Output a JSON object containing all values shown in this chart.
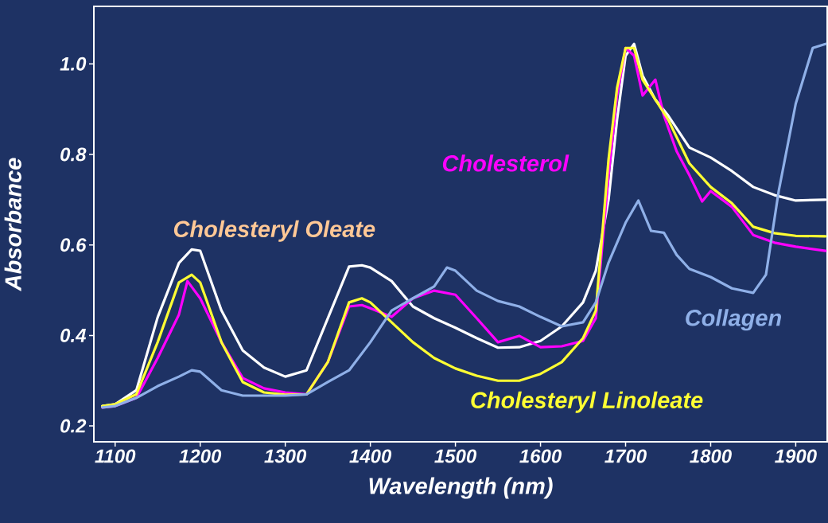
{
  "chart_data": {
    "type": "line",
    "xlabel": "Wavelength (nm)",
    "ylabel": "Absorbance",
    "xlim": [
      1075,
      1937
    ],
    "ylim": [
      0.165,
      1.127
    ],
    "xticks": [
      1100,
      1200,
      1300,
      1400,
      1500,
      1600,
      1700,
      1800,
      1900
    ],
    "yticks": [
      0.2,
      0.4,
      0.6,
      0.8,
      {
        "value": 1.0,
        "label": "1.0"
      }
    ],
    "tick_labels": "xy",
    "grid": false,
    "legend": false,
    "marker": "none",
    "line_style": "solid",
    "series": [
      {
        "name": "Cholesteryl   Oleate",
        "color": "#ffffff",
        "x": [
          1085,
          1100,
          1125,
          1150,
          1175,
          1190,
          1200,
          1225,
          1250,
          1275,
          1300,
          1325,
          1350,
          1375,
          1390,
          1400,
          1425,
          1450,
          1475,
          1500,
          1525,
          1550,
          1575,
          1600,
          1625,
          1650,
          1665,
          1680,
          1690,
          1700,
          1710,
          1720,
          1735,
          1750,
          1775,
          1800,
          1825,
          1850,
          1875,
          1900,
          1935
        ],
        "values": [
          0.244,
          0.248,
          0.279,
          0.44,
          0.56,
          0.59,
          0.587,
          0.455,
          0.367,
          0.329,
          0.309,
          0.323,
          0.438,
          0.552,
          0.555,
          0.55,
          0.52,
          0.464,
          0.438,
          0.417,
          0.394,
          0.373,
          0.374,
          0.388,
          0.42,
          0.473,
          0.543,
          0.7,
          0.877,
          1.018,
          1.044,
          0.974,
          0.921,
          0.886,
          0.815,
          0.793,
          0.763,
          0.728,
          0.71,
          0.698,
          0.7
        ]
      },
      {
        "name": "Cholesterol",
        "color": "#ff00ff",
        "x": [
          1085,
          1100,
          1125,
          1150,
          1175,
          1185,
          1200,
          1225,
          1250,
          1275,
          1300,
          1325,
          1350,
          1375,
          1390,
          1400,
          1425,
          1450,
          1475,
          1500,
          1525,
          1550,
          1575,
          1600,
          1625,
          1650,
          1665,
          1680,
          1690,
          1700,
          1710,
          1720,
          1735,
          1745,
          1760,
          1775,
          1790,
          1800,
          1825,
          1850,
          1875,
          1900,
          1935
        ],
        "values": [
          0.241,
          0.244,
          0.262,
          0.35,
          0.446,
          0.52,
          0.482,
          0.385,
          0.306,
          0.283,
          0.274,
          0.27,
          0.341,
          0.464,
          0.467,
          0.46,
          0.441,
          0.482,
          0.499,
          0.49,
          0.438,
          0.385,
          0.399,
          0.374,
          0.376,
          0.388,
          0.438,
          0.754,
          0.93,
          1.035,
          1.018,
          0.93,
          0.965,
          0.886,
          0.807,
          0.754,
          0.696,
          0.719,
          0.684,
          0.622,
          0.605,
          0.596,
          0.587
        ]
      },
      {
        "name": "Cholesteryl   Linoleate",
        "color": "#ffff33",
        "x": [
          1085,
          1100,
          1125,
          1150,
          1175,
          1190,
          1200,
          1225,
          1250,
          1275,
          1300,
          1325,
          1350,
          1375,
          1390,
          1400,
          1425,
          1450,
          1475,
          1500,
          1525,
          1550,
          1575,
          1600,
          1625,
          1650,
          1665,
          1680,
          1690,
          1700,
          1710,
          1720,
          1735,
          1750,
          1775,
          1800,
          1825,
          1850,
          1875,
          1900,
          1935
        ],
        "values": [
          0.244,
          0.248,
          0.27,
          0.385,
          0.517,
          0.534,
          0.517,
          0.385,
          0.297,
          0.274,
          0.269,
          0.27,
          0.341,
          0.473,
          0.482,
          0.473,
          0.429,
          0.385,
          0.35,
          0.327,
          0.311,
          0.3,
          0.3,
          0.315,
          0.341,
          0.394,
          0.455,
          0.789,
          0.947,
          1.035,
          1.035,
          0.965,
          0.921,
          0.877,
          0.78,
          0.728,
          0.692,
          0.64,
          0.626,
          0.62,
          0.619
        ]
      },
      {
        "name": "Collagen",
        "color": "#8fb0e8",
        "x": [
          1085,
          1100,
          1125,
          1150,
          1175,
          1190,
          1200,
          1225,
          1250,
          1275,
          1300,
          1325,
          1350,
          1375,
          1400,
          1425,
          1450,
          1475,
          1490,
          1500,
          1525,
          1550,
          1575,
          1600,
          1625,
          1650,
          1665,
          1680,
          1700,
          1715,
          1730,
          1745,
          1760,
          1775,
          1800,
          1825,
          1850,
          1865,
          1880,
          1900,
          1920,
          1935
        ],
        "values": [
          0.241,
          0.244,
          0.262,
          0.288,
          0.309,
          0.323,
          0.32,
          0.279,
          0.267,
          0.267,
          0.267,
          0.27,
          0.297,
          0.323,
          0.385,
          0.455,
          0.482,
          0.508,
          0.55,
          0.543,
          0.499,
          0.476,
          0.464,
          0.441,
          0.42,
          0.429,
          0.473,
          0.561,
          0.649,
          0.698,
          0.631,
          0.627,
          0.578,
          0.547,
          0.529,
          0.504,
          0.494,
          0.534,
          0.719,
          0.912,
          1.035,
          1.044
        ]
      }
    ]
  }
}
